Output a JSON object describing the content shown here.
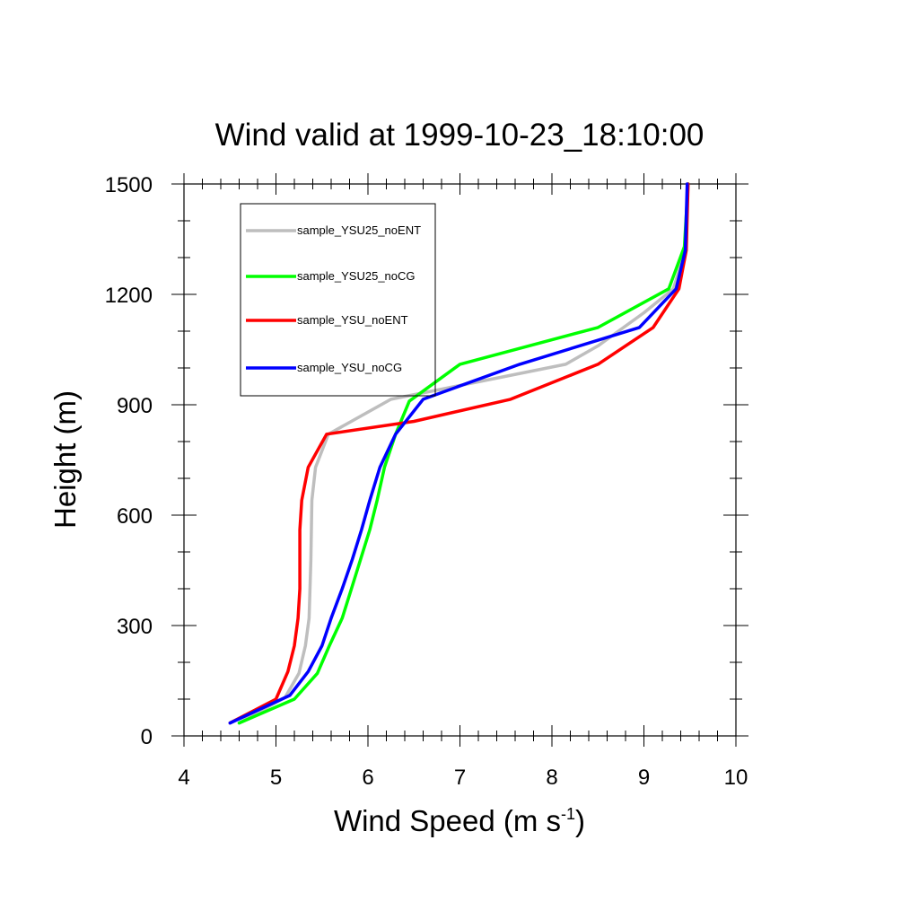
{
  "chart_data": {
    "type": "line",
    "title": "Wind valid at 1999-10-23_18:10:00",
    "xlabel": "Wind Speed (m s",
    "xlabel_sup": "-1",
    "xlabel_end": ")",
    "ylabel": "Height (m)",
    "xlim": [
      4,
      10
    ],
    "ylim": [
      0,
      1500
    ],
    "xticks": [
      4,
      5,
      6,
      7,
      8,
      9,
      10
    ],
    "yticks": [
      0,
      300,
      600,
      900,
      1200,
      1500
    ],
    "xtick_labels": [
      "4",
      "5",
      "6",
      "7",
      "8",
      "9",
      "10"
    ],
    "ytick_labels": [
      "0",
      "300",
      "600",
      "900",
      "1200",
      "1500"
    ],
    "grid": false,
    "legend_position": "top-left",
    "series": [
      {
        "name": "sample_YSU25_noENT",
        "color": "#bebebe",
        "points": [
          [
            4.6,
            35
          ],
          [
            5.1,
            105
          ],
          [
            5.25,
            170
          ],
          [
            5.32,
            245
          ],
          [
            5.36,
            320
          ],
          [
            5.38,
            480
          ],
          [
            5.39,
            640
          ],
          [
            5.43,
            730
          ],
          [
            5.57,
            820
          ],
          [
            6.25,
            915
          ],
          [
            6.85,
            945
          ],
          [
            8.15,
            1010
          ],
          [
            8.5,
            1060
          ],
          [
            9.0,
            1150
          ],
          [
            9.32,
            1215
          ],
          [
            9.45,
            1320
          ],
          [
            9.48,
            1500
          ]
        ]
      },
      {
        "name": "sample_YSU25_noCG",
        "color": "#00ff00",
        "points": [
          [
            4.6,
            35
          ],
          [
            5.2,
            100
          ],
          [
            5.45,
            170
          ],
          [
            5.58,
            245
          ],
          [
            5.72,
            320
          ],
          [
            5.82,
            400
          ],
          [
            5.92,
            480
          ],
          [
            6.02,
            560
          ],
          [
            6.1,
            640
          ],
          [
            6.18,
            730
          ],
          [
            6.3,
            820
          ],
          [
            6.45,
            910
          ],
          [
            7.0,
            1010
          ],
          [
            8.5,
            1110
          ],
          [
            9.27,
            1215
          ],
          [
            9.44,
            1330
          ],
          [
            9.48,
            1500
          ]
        ]
      },
      {
        "name": "sample_YSU_noENT",
        "color": "#ff0000",
        "points": [
          [
            4.5,
            35
          ],
          [
            5.0,
            100
          ],
          [
            5.13,
            175
          ],
          [
            5.2,
            245
          ],
          [
            5.24,
            320
          ],
          [
            5.26,
            400
          ],
          [
            5.26,
            480
          ],
          [
            5.26,
            560
          ],
          [
            5.28,
            640
          ],
          [
            5.35,
            730
          ],
          [
            5.55,
            820
          ],
          [
            6.5,
            855
          ],
          [
            7.55,
            915
          ],
          [
            8.5,
            1010
          ],
          [
            9.1,
            1110
          ],
          [
            9.38,
            1215
          ],
          [
            9.46,
            1320
          ],
          [
            9.48,
            1500
          ]
        ]
      },
      {
        "name": "sample_YSU_noCG",
        "color": "#0000ff",
        "points": [
          [
            4.5,
            35
          ],
          [
            5.15,
            110
          ],
          [
            5.35,
            175
          ],
          [
            5.5,
            245
          ],
          [
            5.6,
            320
          ],
          [
            5.72,
            400
          ],
          [
            5.83,
            480
          ],
          [
            5.93,
            560
          ],
          [
            6.02,
            640
          ],
          [
            6.13,
            730
          ],
          [
            6.3,
            820
          ],
          [
            6.6,
            915
          ],
          [
            7.65,
            1010
          ],
          [
            8.95,
            1110
          ],
          [
            9.35,
            1215
          ],
          [
            9.45,
            1320
          ],
          [
            9.47,
            1500
          ]
        ]
      }
    ]
  }
}
